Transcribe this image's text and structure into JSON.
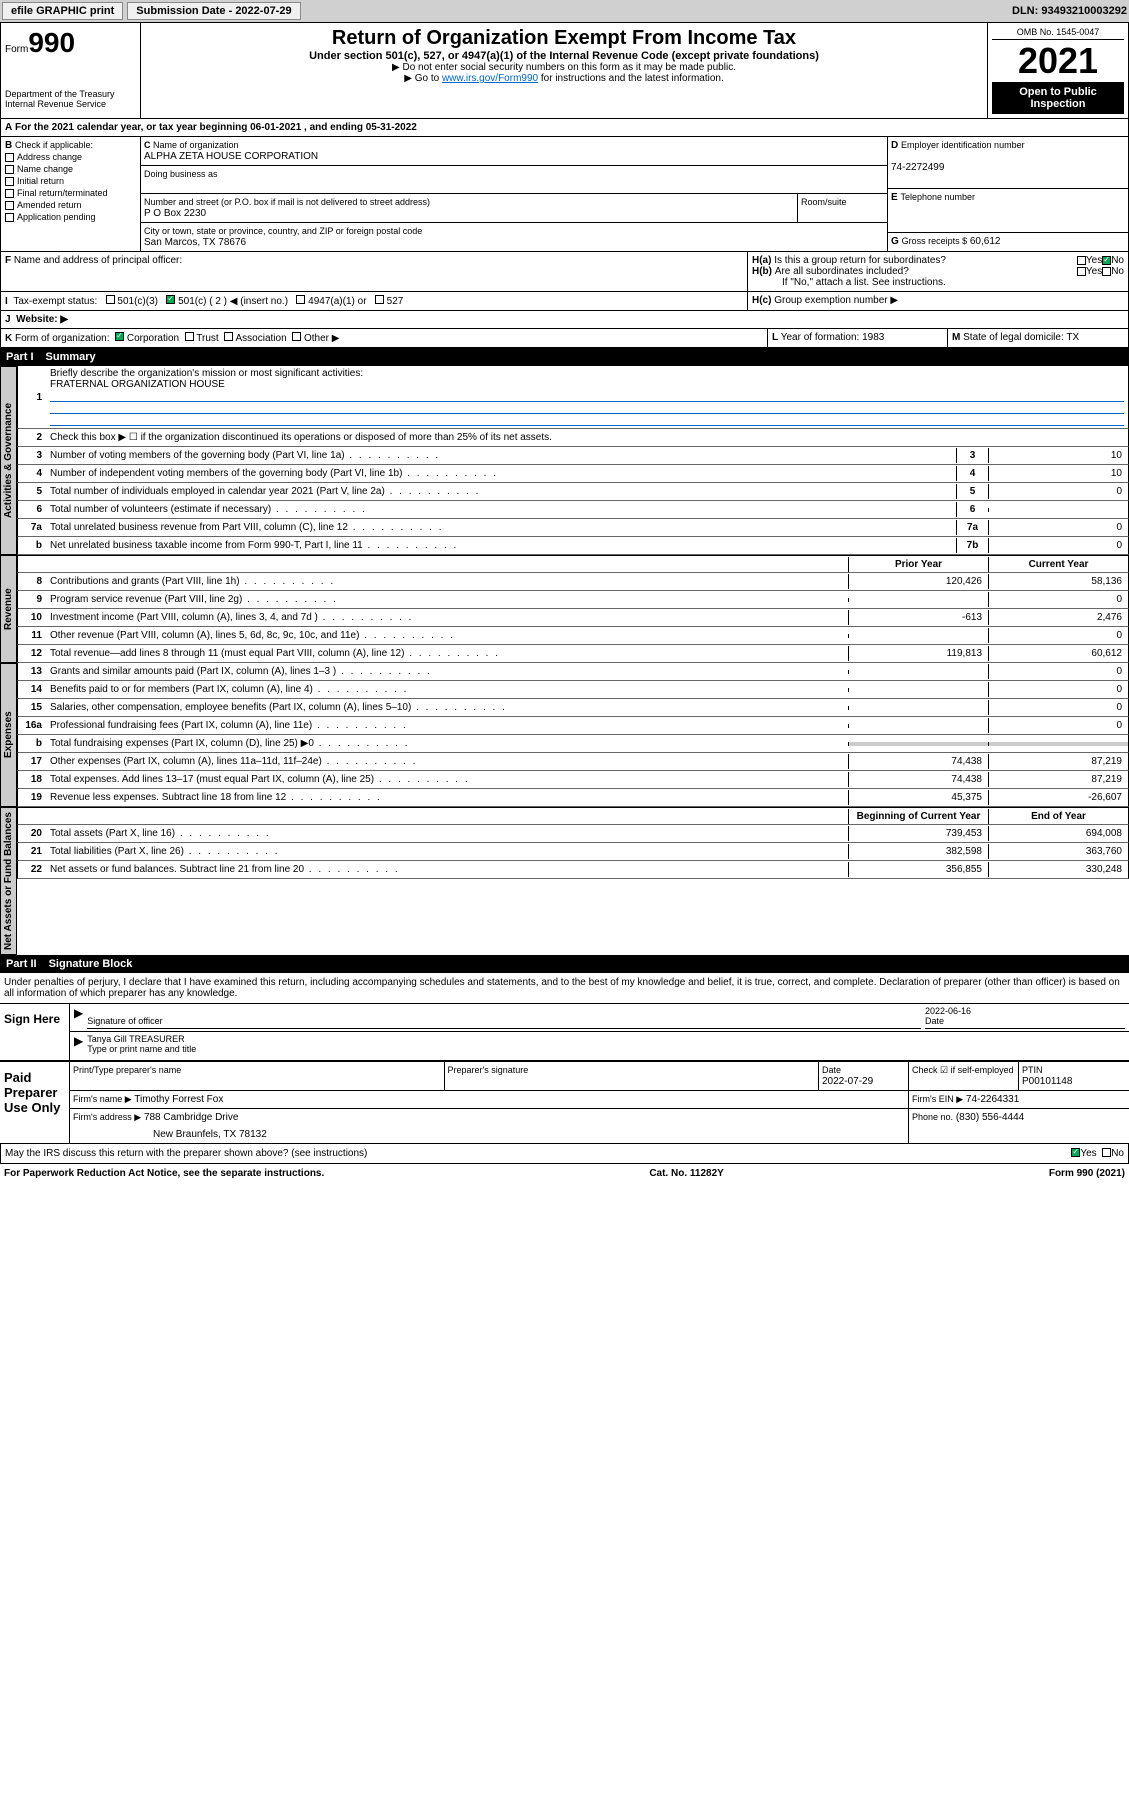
{
  "topbar": {
    "efile": "efile GRAPHIC print",
    "sub_label": "Submission Date - 2022-07-29",
    "dln": "DLN: 93493210003292"
  },
  "header": {
    "form_word": "Form",
    "form_no": "990",
    "dept": "Department of the Treasury",
    "irs": "Internal Revenue Service",
    "title": "Return of Organization Exempt From Income Tax",
    "subtitle": "Under section 501(c), 527, or 4947(a)(1) of the Internal Revenue Code (except private foundations)",
    "instr1": "▶ Do not enter social security numbers on this form as it may be made public.",
    "instr2_pre": "▶ Go to ",
    "instr2_link": "www.irs.gov/Form990",
    "instr2_post": " for instructions and the latest information.",
    "omb": "OMB No. 1545-0047",
    "year": "2021",
    "open": "Open to Public Inspection"
  },
  "sectionA": {
    "line": "For the 2021 calendar year, or tax year beginning 06-01-2021  , and ending 05-31-2022"
  },
  "sectionB": {
    "label": "Check if applicable:",
    "opts": [
      "Address change",
      "Name change",
      "Initial return",
      "Final return/terminated",
      "Amended return",
      "Application pending"
    ]
  },
  "sectionC": {
    "label": "Name of organization",
    "name": "ALPHA ZETA HOUSE CORPORATION",
    "dba_label": "Doing business as",
    "addr_label": "Number and street (or P.O. box if mail is not delivered to street address)",
    "room_label": "Room/suite",
    "addr": "P O Box 2230",
    "city_label": "City or town, state or province, country, and ZIP or foreign postal code",
    "city": "San Marcos, TX  78676"
  },
  "sectionD": {
    "label": "Employer identification number",
    "val": "74-2272499"
  },
  "sectionE": {
    "label": "Telephone number"
  },
  "sectionG": {
    "label": "Gross receipts $",
    "val": "60,612"
  },
  "sectionF": {
    "label": "Name and address of principal officer:"
  },
  "sectionH": {
    "a_label": "Is this a group return for subordinates?",
    "b_label": "Are all subordinates included?",
    "b_note": "If \"No,\" attach a list. See instructions.",
    "c_label": "Group exemption number ▶",
    "yes": "Yes",
    "no": "No"
  },
  "sectionI": {
    "label": "Tax-exempt status:",
    "opts": [
      "501(c)(3)",
      "501(c) ( 2 ) ◀ (insert no.)",
      "4947(a)(1) or",
      "527"
    ]
  },
  "sectionJ": {
    "label": "Website: ▶"
  },
  "sectionK": {
    "label": "Form of organization:",
    "opts": [
      "Corporation",
      "Trust",
      "Association",
      "Other ▶"
    ]
  },
  "sectionL": {
    "label": "Year of formation:",
    "val": "1983"
  },
  "sectionM": {
    "label": "State of legal domicile:",
    "val": "TX"
  },
  "part1": {
    "num": "Part I",
    "title": "Summary",
    "q1": "Briefly describe the organization's mission or most significant activities:",
    "q1_ans": "FRATERNAL ORGANIZATION HOUSE",
    "q2": "Check this box ▶ ☐  if the organization discontinued its operations or disposed of more than 25% of its net assets.",
    "vert_ag": "Activities & Governance",
    "vert_rev": "Revenue",
    "vert_exp": "Expenses",
    "vert_na": "Net Assets or Fund Balances",
    "hdr_prior": "Prior Year",
    "hdr_curr": "Current Year",
    "hdr_boy": "Beginning of Current Year",
    "hdr_eoy": "End of Year",
    "ag_lines": [
      {
        "n": "3",
        "t": "Number of voting members of the governing body (Part VI, line 1a)",
        "box": "3",
        "v": "10"
      },
      {
        "n": "4",
        "t": "Number of independent voting members of the governing body (Part VI, line 1b)",
        "box": "4",
        "v": "10"
      },
      {
        "n": "5",
        "t": "Total number of individuals employed in calendar year 2021 (Part V, line 2a)",
        "box": "5",
        "v": "0"
      },
      {
        "n": "6",
        "t": "Total number of volunteers (estimate if necessary)",
        "box": "6",
        "v": ""
      },
      {
        "n": "7a",
        "t": "Total unrelated business revenue from Part VIII, column (C), line 12",
        "box": "7a",
        "v": "0"
      },
      {
        "n": "b",
        "t": "Net unrelated business taxable income from Form 990-T, Part I, line 11",
        "box": "7b",
        "v": "0"
      }
    ],
    "rev_lines": [
      {
        "n": "8",
        "t": "Contributions and grants (Part VIII, line 1h)",
        "p": "120,426",
        "c": "58,136"
      },
      {
        "n": "9",
        "t": "Program service revenue (Part VIII, line 2g)",
        "p": "",
        "c": "0"
      },
      {
        "n": "10",
        "t": "Investment income (Part VIII, column (A), lines 3, 4, and 7d )",
        "p": "-613",
        "c": "2,476"
      },
      {
        "n": "11",
        "t": "Other revenue (Part VIII, column (A), lines 5, 6d, 8c, 9c, 10c, and 11e)",
        "p": "",
        "c": "0"
      },
      {
        "n": "12",
        "t": "Total revenue—add lines 8 through 11 (must equal Part VIII, column (A), line 12)",
        "p": "119,813",
        "c": "60,612"
      }
    ],
    "exp_lines": [
      {
        "n": "13",
        "t": "Grants and similar amounts paid (Part IX, column (A), lines 1–3 )",
        "p": "",
        "c": "0"
      },
      {
        "n": "14",
        "t": "Benefits paid to or for members (Part IX, column (A), line 4)",
        "p": "",
        "c": "0"
      },
      {
        "n": "15",
        "t": "Salaries, other compensation, employee benefits (Part IX, column (A), lines 5–10)",
        "p": "",
        "c": "0"
      },
      {
        "n": "16a",
        "t": "Professional fundraising fees (Part IX, column (A), line 11e)",
        "p": "",
        "c": "0"
      },
      {
        "n": "b",
        "t": "Total fundraising expenses (Part IX, column (D), line 25) ▶0",
        "p": "",
        "c": "",
        "shaded": true
      },
      {
        "n": "17",
        "t": "Other expenses (Part IX, column (A), lines 11a–11d, 11f–24e)",
        "p": "74,438",
        "c": "87,219"
      },
      {
        "n": "18",
        "t": "Total expenses. Add lines 13–17 (must equal Part IX, column (A), line 25)",
        "p": "74,438",
        "c": "87,219"
      },
      {
        "n": "19",
        "t": "Revenue less expenses. Subtract line 18 from line 12",
        "p": "45,375",
        "c": "-26,607"
      }
    ],
    "na_lines": [
      {
        "n": "20",
        "t": "Total assets (Part X, line 16)",
        "p": "739,453",
        "c": "694,008"
      },
      {
        "n": "21",
        "t": "Total liabilities (Part X, line 26)",
        "p": "382,598",
        "c": "363,760"
      },
      {
        "n": "22",
        "t": "Net assets or fund balances. Subtract line 21 from line 20",
        "p": "356,855",
        "c": "330,248"
      }
    ]
  },
  "part2": {
    "num": "Part II",
    "title": "Signature Block",
    "decl": "Under penalties of perjury, I declare that I have examined this return, including accompanying schedules and statements, and to the best of my knowledge and belief, it is true, correct, and complete. Declaration of preparer (other than officer) is based on all information of which preparer has any knowledge."
  },
  "sign": {
    "label": "Sign Here",
    "sig_officer": "Signature of officer",
    "date_label": "Date",
    "date": "2022-06-16",
    "name": "Tanya Gill TREASURER",
    "name_label": "Type or print name and title"
  },
  "preparer": {
    "label": "Paid Preparer Use Only",
    "name_hdr": "Print/Type preparer's name",
    "sig_hdr": "Preparer's signature",
    "date_hdr": "Date",
    "date": "2022-07-29",
    "check_label": "Check ☑ if self-employed",
    "ptin_label": "PTIN",
    "ptin": "P00101148",
    "firm_name_label": "Firm's name  ▶",
    "firm_name": "Timothy Forrest Fox",
    "firm_ein_label": "Firm's EIN ▶",
    "firm_ein": "74-2264331",
    "firm_addr_label": "Firm's address ▶",
    "firm_addr1": "788 Cambridge Drive",
    "firm_addr2": "New Braunfels, TX  78132",
    "phone_label": "Phone no.",
    "phone": "(830) 556-4444"
  },
  "footer": {
    "discuss": "May the IRS discuss this return with the preparer shown above? (see instructions)",
    "yes": "Yes",
    "no": "No",
    "paperwork": "For Paperwork Reduction Act Notice, see the separate instructions.",
    "cat": "Cat. No. 11282Y",
    "form": "Form 990 (2021)"
  }
}
